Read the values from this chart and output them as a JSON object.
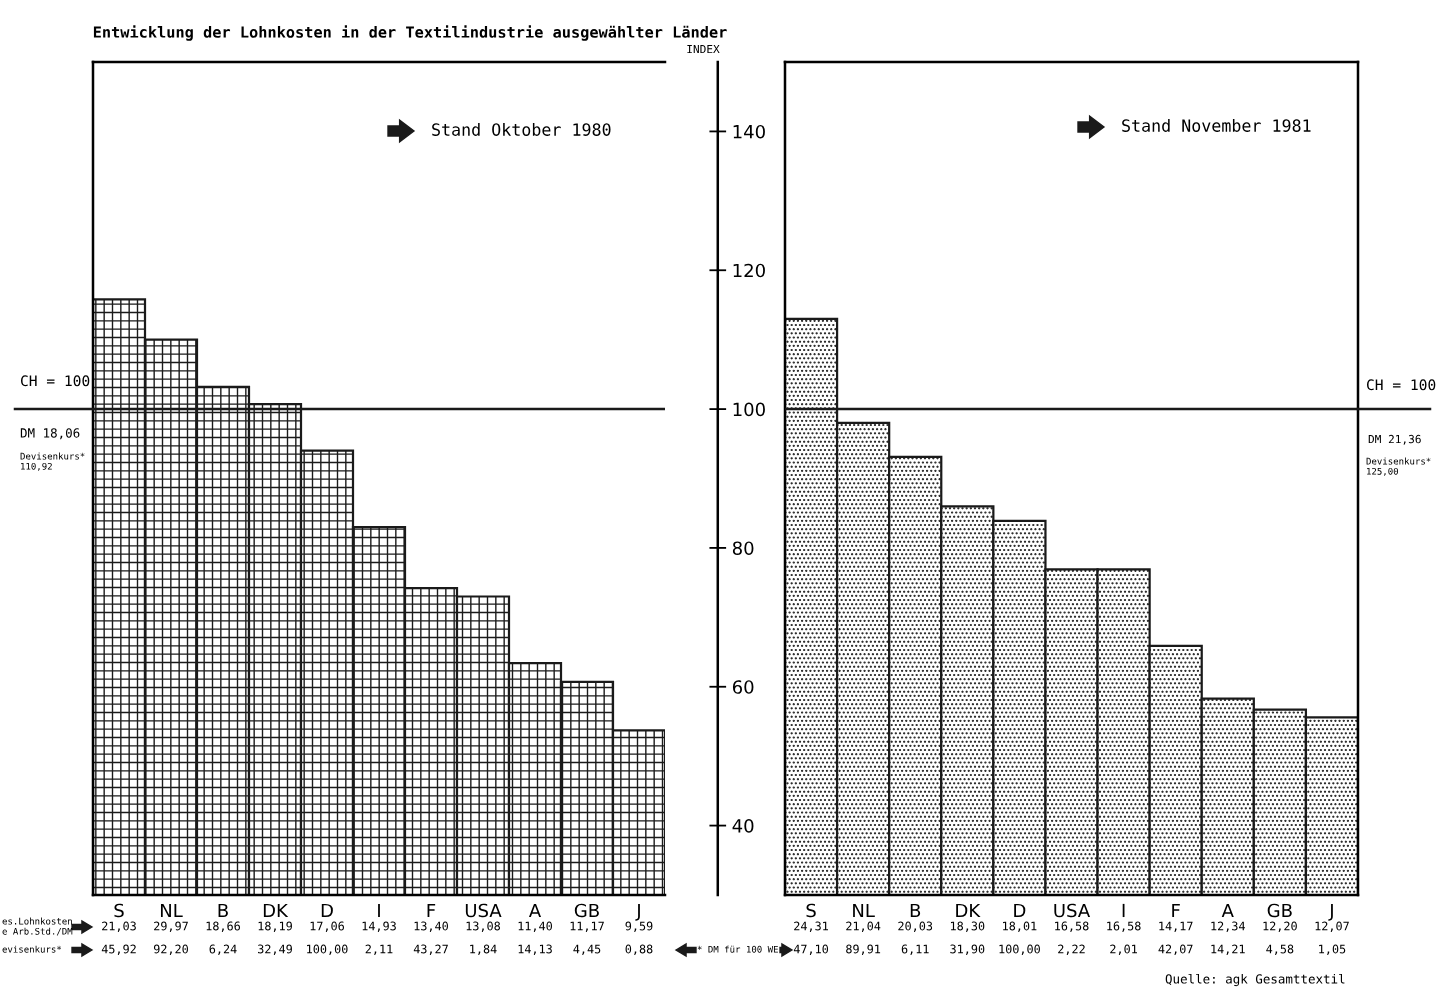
{
  "chart_data": [
    {
      "type": "bar",
      "title": "Entwicklung der Lohnkosten in der Textilindustrie ausgewählter Länder",
      "subtitle": "Stand Oktober 1980",
      "ylabel": "INDEX",
      "categories": [
        "S",
        "NL",
        "B",
        "DK",
        "D",
        "I",
        "F",
        "USA",
        "A",
        "GB",
        "J"
      ],
      "series": [
        {
          "color": "#1a1a1a",
          "values": [
            115.8,
            110.0,
            103.2,
            100.7,
            94.0,
            83.0,
            74.2,
            73.0,
            63.4,
            60.7,
            53.7
          ]
        }
      ],
      "ylim": [
        30,
        150
      ],
      "yticks": [
        40,
        60,
        80,
        100,
        120,
        140
      ],
      "ref_lines": [
        {
          "axis": "y",
          "value": 100,
          "label": "CH = 100",
          "color": "#1a1a1a"
        }
      ],
      "grid": false,
      "legend": false,
      "annotations": [
        "es.Lohnkosten\ne Arb.Std./DM",
        "evisenkurs*",
        "DM 18,06",
        "Devisenkurs*\n110,92",
        "21,03",
        "29,97",
        "18,66",
        "18,19",
        "17,06",
        "14,93",
        "13,40",
        "13,08",
        "11,40",
        "11,17",
        "9,59",
        "45,92",
        "92,20",
        "6,24",
        "32,49",
        "100,00",
        "2,11",
        "43,27",
        "1,84",
        "14,13",
        "4,45",
        "0,88"
      ]
    },
    {
      "type": "bar",
      "subtitle": "Stand November 1981",
      "categories": [
        "S",
        "NL",
        "B",
        "DK",
        "D",
        "USA",
        "I",
        "F",
        "A",
        "GB",
        "J"
      ],
      "series": [
        {
          "color": "#1a1a1a",
          "values": [
            113.0,
            98.0,
            93.1,
            86.0,
            83.9,
            76.9,
            76.9,
            65.9,
            58.3,
            56.7,
            55.6
          ]
        }
      ],
      "ylim": [
        30,
        150
      ],
      "tick_labels": "x",
      "ref_lines": [
        {
          "axis": "y",
          "value": 100,
          "label": "CH = 100",
          "color": "#1a1a1a"
        }
      ],
      "grid": false,
      "legend": false,
      "annotations": [
        "* DM für 100 WE",
        "DM 21,36",
        "Devisenkurs*\n125,00",
        "Quelle: agk Gesamttextil",
        "24,31",
        "21,04",
        "20,03",
        "18,30",
        "18,01",
        "16,58",
        "16,58",
        "14,17",
        "12,34",
        "12,20",
        "12,07",
        "47,10",
        "89,91",
        "6,11",
        "31,90",
        "100,00",
        "2,22",
        "2,01",
        "42,07",
        "14,21",
        "4,58",
        "1,05"
      ]
    }
  ]
}
